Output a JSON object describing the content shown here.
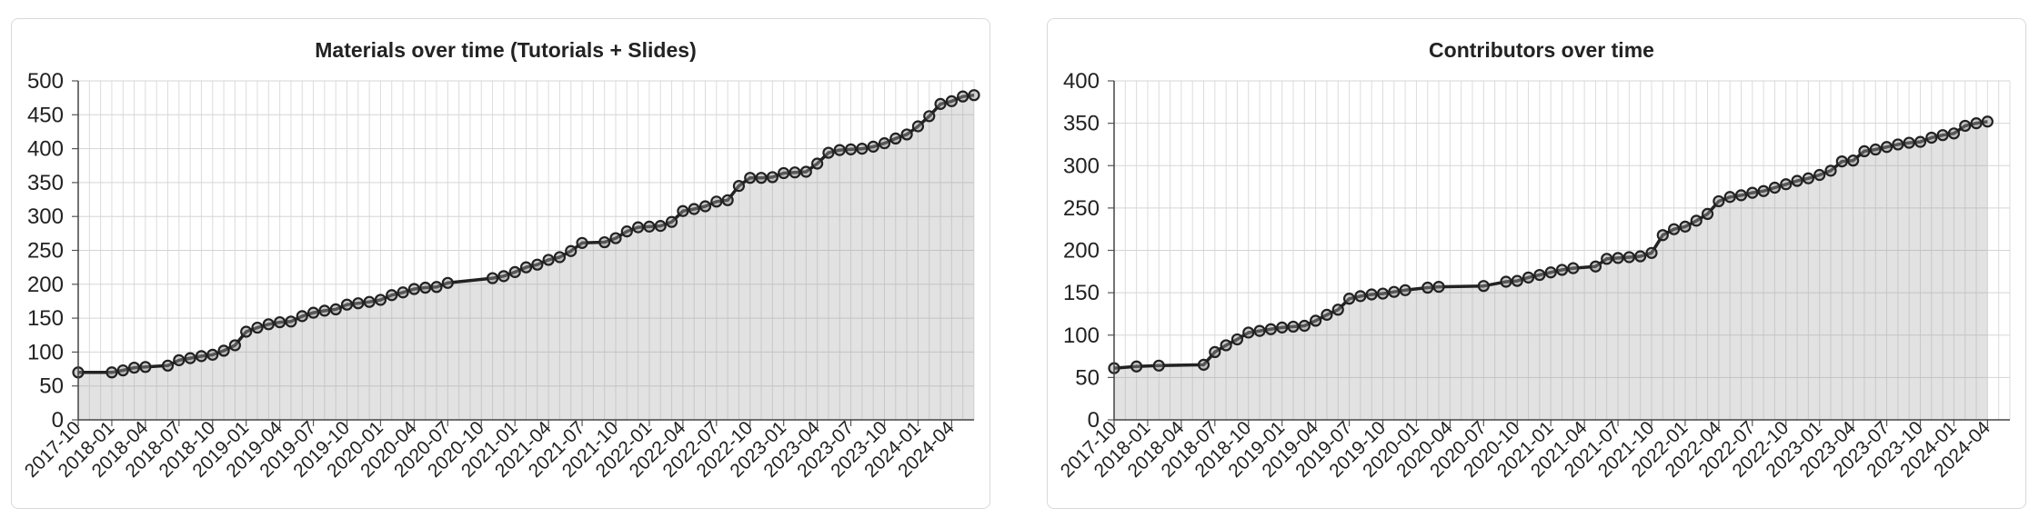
{
  "chart_data": [
    {
      "type": "area",
      "title": "Materials over time (Tutorials + Slides)",
      "xlabel": "",
      "ylabel": "",
      "ylim": [
        0,
        500
      ],
      "yticks": [
        0,
        50,
        100,
        150,
        200,
        250,
        300,
        350,
        400,
        450,
        500
      ],
      "x_ticks": [
        "2017-10",
        "2018-01",
        "2018-04",
        "2018-07",
        "2018-10",
        "2019-01",
        "2019-04",
        "2019-07",
        "2019-10",
        "2020-01",
        "2020-04",
        "2020-07",
        "2020-10",
        "2021-01",
        "2021-04",
        "2021-07",
        "2021-10",
        "2022-01",
        "2022-04",
        "2022-07",
        "2022-10",
        "2023-01",
        "2023-04",
        "2023-07",
        "2023-10",
        "2024-01",
        "2024-04"
      ],
      "grid": true,
      "series": [
        {
          "values": [
            [
              "2017-10",
              70
            ],
            [
              "2018-01",
              70
            ],
            [
              "2018-02",
              73
            ],
            [
              "2018-03",
              77
            ],
            [
              "2018-04",
              78
            ],
            [
              "2018-06",
              80
            ],
            [
              "2018-07",
              88
            ],
            [
              "2018-08",
              91
            ],
            [
              "2018-09",
              94
            ],
            [
              "2018-10",
              96
            ],
            [
              "2018-11",
              102
            ],
            [
              "2018-12",
              110
            ],
            [
              "2019-01",
              130
            ],
            [
              "2019-02",
              136
            ],
            [
              "2019-03",
              141
            ],
            [
              "2019-04",
              144
            ],
            [
              "2019-05",
              145
            ],
            [
              "2019-06",
              153
            ],
            [
              "2019-07",
              158
            ],
            [
              "2019-08",
              161
            ],
            [
              "2019-09",
              163
            ],
            [
              "2019-10",
              170
            ],
            [
              "2019-11",
              172
            ],
            [
              "2019-12",
              174
            ],
            [
              "2020-01",
              177
            ],
            [
              "2020-02",
              184
            ],
            [
              "2020-03",
              188
            ],
            [
              "2020-04",
              193
            ],
            [
              "2020-05",
              195
            ],
            [
              "2020-06",
              196
            ],
            [
              "2020-07",
              202
            ],
            [
              "2020-11",
              209
            ],
            [
              "2020-12",
              212
            ],
            [
              "2021-01",
              218
            ],
            [
              "2021-02",
              225
            ],
            [
              "2021-03",
              229
            ],
            [
              "2021-04",
              236
            ],
            [
              "2021-05",
              240
            ],
            [
              "2021-06",
              249
            ],
            [
              "2021-07",
              261
            ],
            [
              "2021-09",
              262
            ],
            [
              "2021-10",
              268
            ],
            [
              "2021-11",
              278
            ],
            [
              "2021-12",
              284
            ],
            [
              "2022-01",
              285
            ],
            [
              "2022-02",
              286
            ],
            [
              "2022-03",
              292
            ],
            [
              "2022-04",
              308
            ],
            [
              "2022-05",
              311
            ],
            [
              "2022-06",
              315
            ],
            [
              "2022-07",
              322
            ],
            [
              "2022-08",
              324
            ],
            [
              "2022-09",
              345
            ],
            [
              "2022-10",
              357
            ],
            [
              "2022-11",
              357
            ],
            [
              "2022-12",
              358
            ],
            [
              "2023-01",
              364
            ],
            [
              "2023-02",
              365
            ],
            [
              "2023-03",
              366
            ],
            [
              "2023-04",
              378
            ],
            [
              "2023-05",
              394
            ],
            [
              "2023-06",
              398
            ],
            [
              "2023-07",
              399
            ],
            [
              "2023-08",
              400
            ],
            [
              "2023-09",
              403
            ],
            [
              "2023-10",
              408
            ],
            [
              "2023-11",
              415
            ],
            [
              "2023-12",
              421
            ],
            [
              "2024-01",
              433
            ],
            [
              "2024-02",
              448
            ],
            [
              "2024-03",
              466
            ],
            [
              "2024-04",
              470
            ],
            [
              "2024-05",
              477
            ],
            [
              "2024-06",
              479
            ]
          ]
        }
      ]
    },
    {
      "type": "area",
      "title": "Contributors over time",
      "xlabel": "",
      "ylabel": "",
      "ylim": [
        0,
        400
      ],
      "yticks": [
        0,
        50,
        100,
        150,
        200,
        250,
        300,
        350,
        400
      ],
      "x_ticks": [
        "2017-10",
        "2018-01",
        "2018-04",
        "2018-07",
        "2018-10",
        "2019-01",
        "2019-04",
        "2019-07",
        "2019-10",
        "2020-01",
        "2020-04",
        "2020-07",
        "2020-10",
        "2021-01",
        "2021-04",
        "2021-07",
        "2021-10",
        "2022-01",
        "2022-04",
        "2022-07",
        "2022-10",
        "2023-01",
        "2023-04",
        "2023-07",
        "2023-10",
        "2024-01",
        "2024-04"
      ],
      "grid": true,
      "series": [
        {
          "values": [
            [
              "2017-10",
              61
            ],
            [
              "2017-12",
              63
            ],
            [
              "2018-02",
              64
            ],
            [
              "2018-06",
              65
            ],
            [
              "2018-07",
              80
            ],
            [
              "2018-08",
              88
            ],
            [
              "2018-09",
              95
            ],
            [
              "2018-10",
              103
            ],
            [
              "2018-11",
              105
            ],
            [
              "2018-12",
              107
            ],
            [
              "2019-01",
              109
            ],
            [
              "2019-02",
              110
            ],
            [
              "2019-03",
              111
            ],
            [
              "2019-04",
              117
            ],
            [
              "2019-05",
              124
            ],
            [
              "2019-06",
              130
            ],
            [
              "2019-07",
              143
            ],
            [
              "2019-08",
              146
            ],
            [
              "2019-09",
              148
            ],
            [
              "2019-10",
              149
            ],
            [
              "2019-11",
              151
            ],
            [
              "2019-12",
              153
            ],
            [
              "2020-02",
              156
            ],
            [
              "2020-03",
              157
            ],
            [
              "2020-07",
              158
            ],
            [
              "2020-09",
              163
            ],
            [
              "2020-10",
              164
            ],
            [
              "2020-11",
              168
            ],
            [
              "2020-12",
              171
            ],
            [
              "2021-01",
              174
            ],
            [
              "2021-02",
              177
            ],
            [
              "2021-03",
              179
            ],
            [
              "2021-05",
              181
            ],
            [
              "2021-06",
              190
            ],
            [
              "2021-07",
              191
            ],
            [
              "2021-08",
              192
            ],
            [
              "2021-09",
              193
            ],
            [
              "2021-10",
              197
            ],
            [
              "2021-11",
              218
            ],
            [
              "2021-12",
              225
            ],
            [
              "2022-01",
              228
            ],
            [
              "2022-02",
              235
            ],
            [
              "2022-03",
              243
            ],
            [
              "2022-04",
              258
            ],
            [
              "2022-05",
              263
            ],
            [
              "2022-06",
              265
            ],
            [
              "2022-07",
              268
            ],
            [
              "2022-08",
              270
            ],
            [
              "2022-09",
              274
            ],
            [
              "2022-10",
              278
            ],
            [
              "2022-11",
              282
            ],
            [
              "2022-12",
              285
            ],
            [
              "2023-01",
              289
            ],
            [
              "2023-02",
              294
            ],
            [
              "2023-03",
              305
            ],
            [
              "2023-04",
              306
            ],
            [
              "2023-05",
              317
            ],
            [
              "2023-06",
              319
            ],
            [
              "2023-07",
              322
            ],
            [
              "2023-08",
              325
            ],
            [
              "2023-09",
              327
            ],
            [
              "2023-10",
              328
            ],
            [
              "2023-11",
              333
            ],
            [
              "2023-12",
              336
            ],
            [
              "2024-01",
              338
            ],
            [
              "2024-02",
              347
            ],
            [
              "2024-03",
              350
            ],
            [
              "2024-04",
              352
            ]
          ]
        }
      ]
    }
  ]
}
